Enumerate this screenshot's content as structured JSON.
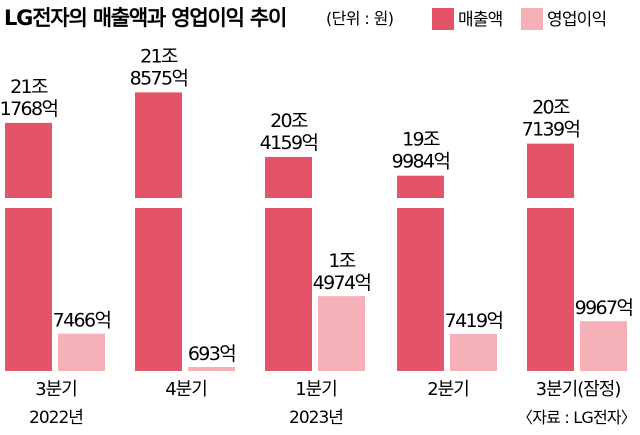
{
  "header": {
    "title": "LG전자의 매출액과 영업이익 추이",
    "unit": "(단위 : 원)"
  },
  "legend": [
    {
      "label": "매출액",
      "color": "#e35468"
    },
    {
      "label": "영업이익",
      "color": "#f5b1b7"
    }
  ],
  "chart_data": {
    "type": "bar",
    "title": "LG전자의 매출액과 영업이익 추이",
    "unit": "원",
    "categories": [
      "3분기",
      "4분기",
      "1분기",
      "2분기",
      "3분기(잠정)"
    ],
    "year_labels": [
      {
        "category_index": 0,
        "text": "2022년"
      },
      {
        "category_index": 2,
        "text": "2023년"
      }
    ],
    "axis_break": true,
    "series": [
      {
        "name": "매출액",
        "color": "#e35468",
        "values": [
          211768,
          218575,
          204159,
          199984,
          207139
        ],
        "labels": [
          [
            "21조",
            "1768억"
          ],
          [
            "21조",
            "8575억"
          ],
          [
            "20조",
            "4159억"
          ],
          [
            "19조",
            "9984억"
          ],
          [
            "20조",
            "7139억"
          ]
        ]
      },
      {
        "name": "영업이익",
        "color": "#f5b1b7",
        "values": [
          7466,
          693,
          14974,
          7419,
          9967
        ],
        "labels": [
          [
            "7466억"
          ],
          [
            "693억"
          ],
          [
            "1조",
            "4974억"
          ],
          [
            "7419억"
          ],
          [
            "9967억"
          ]
        ]
      }
    ],
    "source": "〈자료 : LG전자〉"
  }
}
